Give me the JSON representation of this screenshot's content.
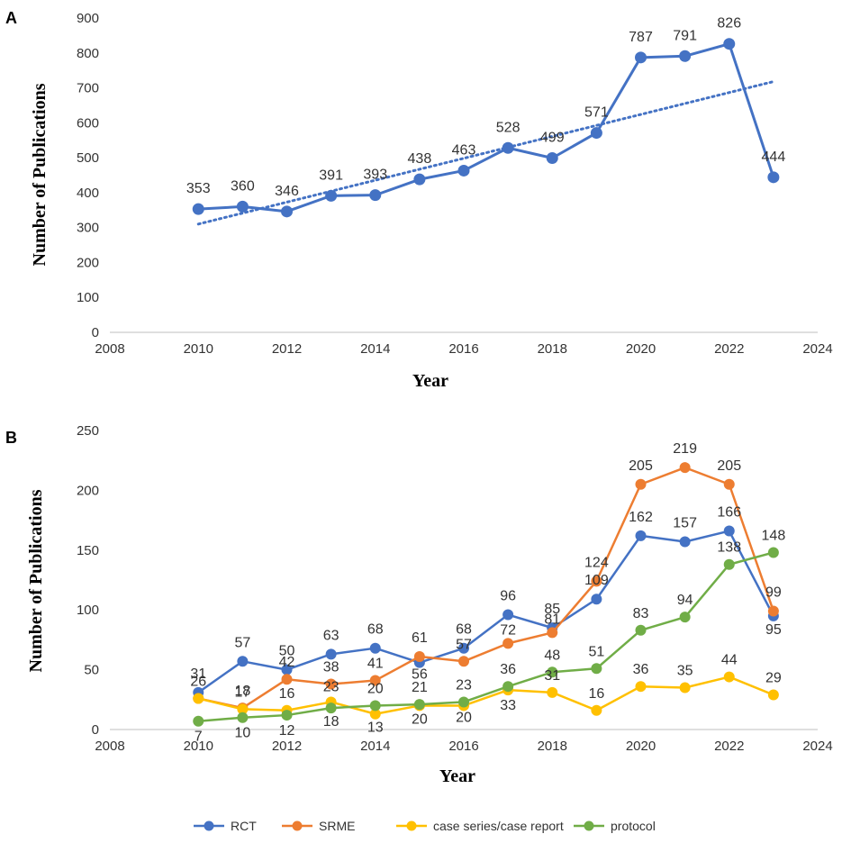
{
  "chart_data": [
    {
      "panel": "A",
      "type": "line",
      "xlabel": "Year",
      "ylabel": "Number of  Publications",
      "xlim": [
        2008,
        2024
      ],
      "ylim": [
        0,
        900
      ],
      "xticks": [
        "2008",
        "2010",
        "2012",
        "2014",
        "2016",
        "2018",
        "2020",
        "2022",
        "2024"
      ],
      "yticks": [
        "0",
        "100",
        "200",
        "300",
        "400",
        "500",
        "600",
        "700",
        "800",
        "900"
      ],
      "x": [
        2010,
        2011,
        2012,
        2013,
        2014,
        2015,
        2016,
        2017,
        2018,
        2019,
        2020,
        2021,
        2022,
        2023
      ],
      "series": [
        {
          "name": "Publications",
          "color": "#4472C4",
          "values": [
            353,
            360,
            346,
            391,
            393,
            438,
            463,
            528,
            499,
            571,
            787,
            791,
            826,
            444
          ],
          "labels": [
            "353",
            "360",
            "346",
            "391",
            "393",
            "438",
            "463",
            "528",
            "499",
            "571",
            "787",
            "791",
            "826",
            "444"
          ]
        }
      ],
      "trendline": {
        "type": "linear",
        "style": "dotted",
        "color": "#4472C4",
        "start": [
          2010,
          310
        ],
        "end": [
          2023,
          718
        ]
      }
    },
    {
      "panel": "B",
      "type": "line",
      "xlabel": "Year",
      "ylabel": "Number of  Publications",
      "xlim": [
        2008,
        2024
      ],
      "ylim": [
        0,
        250
      ],
      "xticks": [
        "2008",
        "2010",
        "2012",
        "2014",
        "2016",
        "2018",
        "2020",
        "2022",
        "2024"
      ],
      "yticks": [
        "0",
        "50",
        "100",
        "150",
        "200",
        "250"
      ],
      "x": [
        2010,
        2011,
        2012,
        2013,
        2014,
        2015,
        2016,
        2017,
        2018,
        2019,
        2020,
        2021,
        2022,
        2023
      ],
      "series": [
        {
          "name": "RCT",
          "color": "#4472C4",
          "values": [
            31,
            57,
            50,
            63,
            68,
            56,
            68,
            96,
            85,
            109,
            162,
            157,
            166,
            95
          ],
          "labels": [
            "31",
            "57",
            "50",
            "63",
            "68",
            "56",
            "68",
            "96",
            "85",
            "109",
            "162",
            "157",
            "166",
            "95"
          ]
        },
        {
          "name": "SRME",
          "color": "#ED7D31",
          "values": [
            26,
            18,
            42,
            38,
            41,
            61,
            57,
            72,
            81,
            124,
            205,
            219,
            205,
            99
          ],
          "labels": [
            "26",
            "18",
            "42",
            "38",
            "41",
            "61",
            "57",
            "72",
            "81",
            "124",
            "205",
            "219",
            "205",
            "99"
          ]
        },
        {
          "name": "case series/case report",
          "color": "#FFC000",
          "values": [
            26,
            17,
            16,
            23,
            13,
            20,
            20,
            33,
            31,
            16,
            36,
            35,
            44,
            29
          ],
          "labels": [
            "",
            "17",
            "16",
            "23",
            "13",
            "20",
            "20",
            "33",
            "31",
            "16",
            "36",
            "35",
            "44",
            "29"
          ]
        },
        {
          "name": "protocol",
          "color": "#70AD47",
          "values": [
            7,
            10,
            12,
            18,
            20,
            21,
            23,
            36,
            48,
            51,
            83,
            94,
            138,
            148
          ],
          "labels": [
            "7",
            "10",
            "12",
            "18",
            "20",
            "21",
            "23",
            "36",
            "48",
            "51",
            "83",
            "94",
            "138",
            "148"
          ]
        }
      ],
      "legend": [
        "RCT",
        "SRME",
        "case series/case report",
        "protocol"
      ],
      "legend_position": "bottom"
    }
  ]
}
